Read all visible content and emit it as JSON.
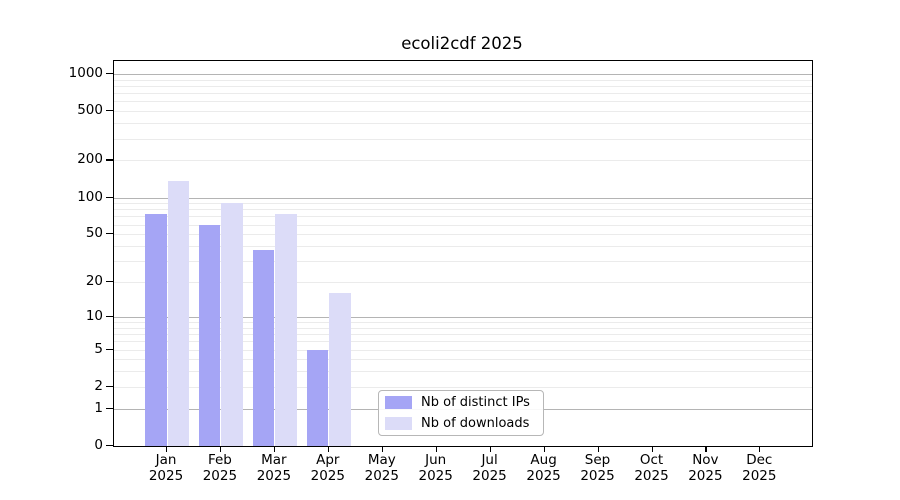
{
  "chart_data": {
    "type": "bar",
    "title": "ecoli2cdf 2025",
    "yscale": "log10(1+value)",
    "ylim": [
      0,
      1270
    ],
    "yticks": [
      0,
      1,
      2,
      5,
      10,
      20,
      50,
      100,
      200,
      500,
      1000
    ],
    "major_grid_values": [
      1,
      10,
      100,
      1000
    ],
    "grid": true,
    "categories": [
      "Jan",
      "Feb",
      "Mar",
      "Apr",
      "May",
      "Jun",
      "Jul",
      "Aug",
      "Sep",
      "Oct",
      "Nov",
      "Dec"
    ],
    "x_year": "2025",
    "series": [
      {
        "name": "Nb of distinct IPs",
        "color": "#a5a5f5",
        "values": [
          73,
          60,
          37,
          5,
          0,
          0,
          0,
          0,
          0,
          0,
          0,
          0
        ]
      },
      {
        "name": "Nb of downloads",
        "color": "#dcdcf8",
        "values": [
          137,
          91,
          73,
          16,
          0,
          0,
          0,
          0,
          0,
          0,
          0,
          0
        ]
      }
    ],
    "legend_position": "inside-bottom-center"
  }
}
